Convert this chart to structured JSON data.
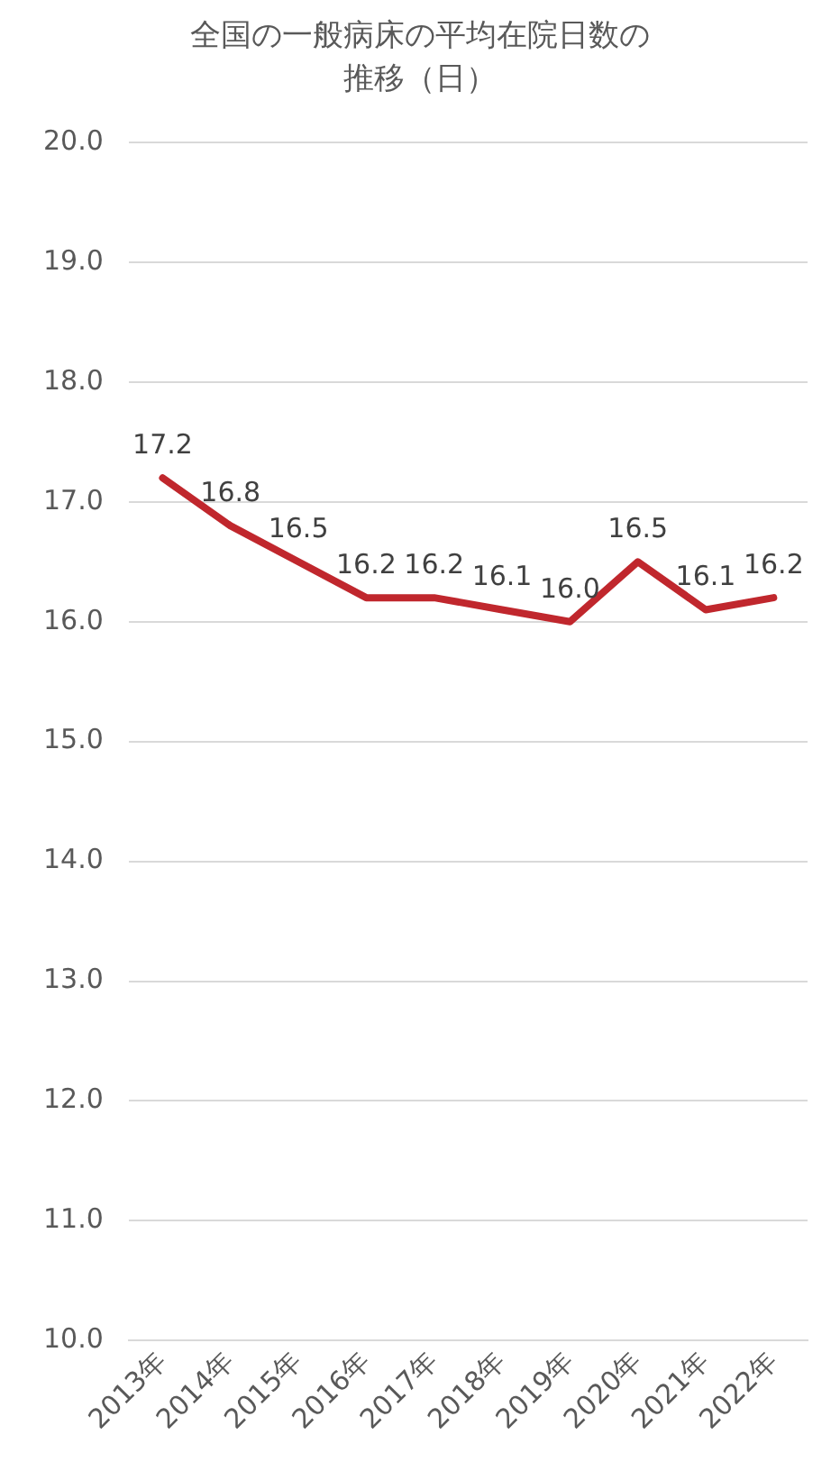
{
  "chart_data": {
    "type": "line",
    "title": "全国の一般病床の平均在院日数の推移（日）",
    "categories": [
      "2013年",
      "2014年",
      "2015年",
      "2016年",
      "2017年",
      "2018年",
      "2019年",
      "2020年",
      "2021年",
      "2022年"
    ],
    "series": [
      {
        "color": "#c0272d",
        "values": [
          17.2,
          16.8,
          16.5,
          16.2,
          16.2,
          16.1,
          16.0,
          16.5,
          16.1,
          16.2
        ],
        "value_labels": [
          "17.2",
          "16.8",
          "16.5",
          "16.2",
          "16.2",
          "16.1",
          "16.0",
          "16.5",
          "16.1",
          "16.2"
        ]
      }
    ],
    "ylim": [
      10,
      20
    ],
    "yticks": [
      {
        "value": 10,
        "label": "10.0"
      },
      {
        "value": 11,
        "label": "11.0"
      },
      {
        "value": 12,
        "label": "12.0"
      },
      {
        "value": 13,
        "label": "13.0"
      },
      {
        "value": 14,
        "label": "14.0"
      },
      {
        "value": 15,
        "label": "15.0"
      },
      {
        "value": 16,
        "label": "16.0"
      },
      {
        "value": 17,
        "label": "17.0"
      },
      {
        "value": 18,
        "label": "18.0"
      },
      {
        "value": 19,
        "label": "19.0"
      },
      {
        "value": 20,
        "label": "20.0"
      }
    ],
    "grid": "y",
    "legend": false,
    "marker": "none",
    "line_style": "solid"
  }
}
